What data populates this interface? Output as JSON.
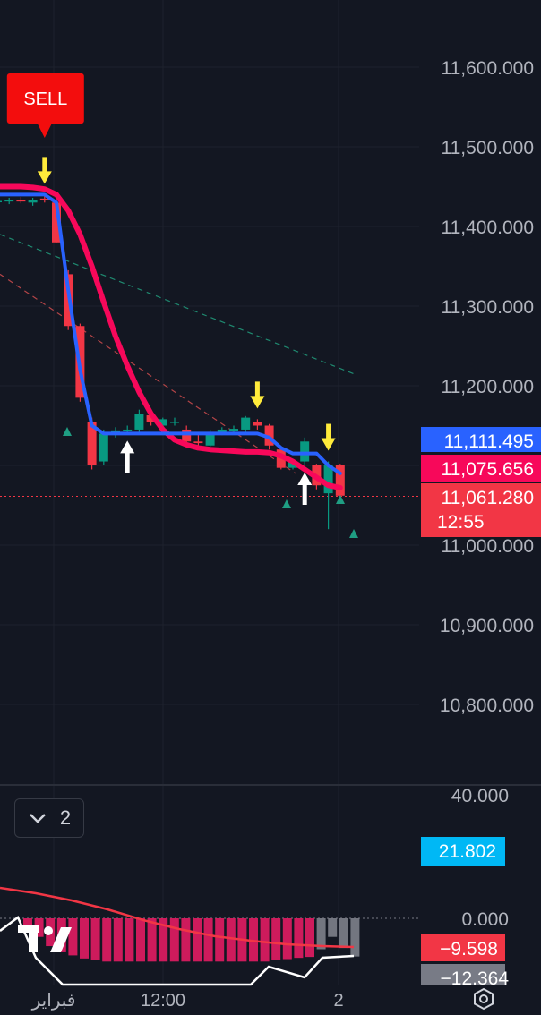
{
  "chart_data": [
    {
      "type": "candlestick",
      "price_axis": {
        "min": 10700,
        "max": 11650,
        "ticks": [
          "11,600.000",
          "11,500.000",
          "11,400.000",
          "11,300.000",
          "11,200.000",
          "11,000.000",
          "10,900.000",
          "10,800.000"
        ],
        "tick_values": [
          11600,
          11500,
          11400,
          11300,
          11200,
          11000,
          10900,
          10800
        ]
      },
      "price_labels": [
        {
          "text": "11,111.495",
          "value": 11111.495,
          "color": "#2962ff"
        },
        {
          "text": "11,075.656",
          "value": 11075.656,
          "color": "#f7085a"
        },
        {
          "text": "11,061.280",
          "value": 11061.28,
          "color": "#f23645",
          "countdown": "12:55"
        }
      ],
      "candles": [
        {
          "o": 11432,
          "h": 11436,
          "l": 11428,
          "c": 11432
        },
        {
          "o": 11432,
          "h": 11436,
          "l": 11428,
          "c": 11433
        },
        {
          "o": 11433,
          "h": 11437,
          "l": 11429,
          "c": 11432
        },
        {
          "o": 11430,
          "h": 11436,
          "l": 11426,
          "c": 11433
        },
        {
          "o": 11435,
          "h": 11440,
          "l": 11430,
          "c": 11433
        },
        {
          "o": 11430,
          "h": 11432,
          "l": 11380,
          "c": 11380
        },
        {
          "o": 11340,
          "h": 11345,
          "l": 11270,
          "c": 11275
        },
        {
          "o": 11275,
          "h": 11278,
          "l": 11180,
          "c": 11185
        },
        {
          "o": 11155,
          "h": 11160,
          "l": 11095,
          "c": 11100
        },
        {
          "o": 11105,
          "h": 11145,
          "l": 11100,
          "c": 11140
        },
        {
          "o": 11140,
          "h": 11148,
          "l": 11135,
          "c": 11144
        },
        {
          "o": 11143,
          "h": 11150,
          "l": 11140,
          "c": 11145
        },
        {
          "o": 11145,
          "h": 11170,
          "l": 11140,
          "c": 11165
        },
        {
          "o": 11163,
          "h": 11168,
          "l": 11150,
          "c": 11155
        },
        {
          "o": 11150,
          "h": 11160,
          "l": 11148,
          "c": 11158
        },
        {
          "o": 11155,
          "h": 11160,
          "l": 11150,
          "c": 11155
        },
        {
          "o": 11145,
          "h": 11150,
          "l": 11125,
          "c": 11130
        },
        {
          "o": 11130,
          "h": 11138,
          "l": 11122,
          "c": 11128
        },
        {
          "o": 11125,
          "h": 11145,
          "l": 11122,
          "c": 11142
        },
        {
          "o": 11140,
          "h": 11148,
          "l": 11138,
          "c": 11145
        },
        {
          "o": 11143,
          "h": 11150,
          "l": 11140,
          "c": 11146
        },
        {
          "o": 11145,
          "h": 11162,
          "l": 11142,
          "c": 11160
        },
        {
          "o": 11155,
          "h": 11158,
          "l": 11145,
          "c": 11150
        },
        {
          "o": 11150,
          "h": 11152,
          "l": 11120,
          "c": 11125
        },
        {
          "o": 11120,
          "h": 11122,
          "l": 11095,
          "c": 11097
        },
        {
          "o": 11097,
          "h": 11108,
          "l": 11095,
          "c": 11105
        },
        {
          "o": 11105,
          "h": 11135,
          "l": 11100,
          "c": 11130
        },
        {
          "o": 11100,
          "h": 11102,
          "l": 11070,
          "c": 11075
        },
        {
          "o": 11065,
          "h": 11105,
          "l": 11020,
          "c": 11100
        },
        {
          "o": 11100,
          "h": 11102,
          "l": 11060,
          "c": 11062
        }
      ],
      "supertrend_line": [
        11440,
        11440,
        11440,
        11440,
        11440,
        11430,
        11320,
        11220,
        11150,
        11140,
        11140,
        11140,
        11140,
        11140,
        11140,
        11140,
        11140,
        11140,
        11140,
        11140,
        11140,
        11140,
        11140,
        11135,
        11122,
        11115,
        11115,
        11115,
        11100,
        11090
      ],
      "moving_average_line": [
        11450,
        11450,
        11450,
        11449,
        11447,
        11440,
        11420,
        11390,
        11350,
        11305,
        11262,
        11225,
        11192,
        11165,
        11145,
        11132,
        11126,
        11122,
        11120,
        11119,
        11118,
        11117,
        11117,
        11116,
        11112,
        11105,
        11095,
        11085,
        11075,
        11072
      ],
      "signals": [
        {
          "text": "SELL",
          "candle": 4,
          "kind": "sell-label"
        },
        {
          "candle": 4,
          "kind": "yellow-down"
        },
        {
          "candle": 22,
          "kind": "yellow-down"
        },
        {
          "candle": 28,
          "kind": "yellow-down"
        },
        {
          "candle": 11,
          "kind": "white-up"
        },
        {
          "candle": 26,
          "kind": "white-up"
        }
      ],
      "time_axis": [
        "فبراير",
        "12:00",
        "2"
      ]
    },
    {
      "type": "histogram",
      "axis_ticks": [
        "40.000",
        "0.000"
      ],
      "axis_values": [
        40,
        0
      ],
      "value_labels": [
        {
          "text": "21.802",
          "value": 21.802,
          "color": "#00b8f5"
        },
        {
          "text": "−9.598",
          "value": -9.598,
          "color": "#f23645"
        },
        {
          "text": "−12.364",
          "value": -12.364,
          "color": "#787b86"
        }
      ],
      "bars": [
        -3,
        -6,
        -9,
        -11,
        -12,
        -13,
        -13.5,
        -14,
        -14,
        -14,
        -14,
        -14,
        -14,
        -14,
        -14,
        -14,
        -14,
        -14,
        -14,
        -14,
        -14,
        -14,
        -13.5,
        -13.2,
        -12.8,
        -12.5,
        -10,
        -6,
        -9.6,
        -12.36
      ]
    }
  ],
  "indicator_toggle": {
    "count": "2",
    "icon": "chevron-down-icon"
  },
  "settings": {
    "icon": "settings-gear-icon"
  },
  "logo": {
    "icon": "tradingview-logo-icon"
  }
}
